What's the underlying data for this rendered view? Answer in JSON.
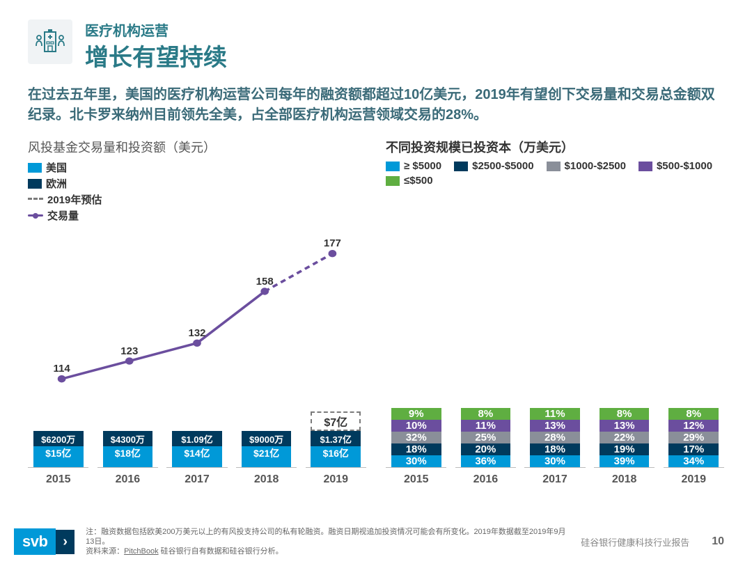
{
  "colors": {
    "brand_blue": "#0099d8",
    "title_teal": "#2a7a87",
    "dark_navy": "#003a5d",
    "purple": "#6b4e9e",
    "gray_seg": "#8a8f99",
    "green": "#5fae41",
    "text_gray": "#4a4a4a",
    "forecast_dash": "#7a7a7a"
  },
  "header": {
    "eyebrow": "医疗机构运营",
    "title": "增长有望持续",
    "eyebrow_color": "#2a7a87",
    "title_color": "#2a7a87",
    "eyebrow_fontsize": 20,
    "title_fontsize": 34
  },
  "subtext": "在过去五年里，美国的医疗机构运营公司每年的融资额都超过10亿美元，2019年有望创下交易量和交易总金额双纪录。北卡罗来纳州目前领先全美，占全部医疗机构运营领域交易的28%。",
  "subtext_color": "#3a6a78",
  "left_chart": {
    "title": "风投基金交易量和投资额（美元）",
    "legend": [
      {
        "label": "美国",
        "kind": "block",
        "color": "#0099d8"
      },
      {
        "label": "欧洲",
        "kind": "block",
        "color": "#003a5d"
      },
      {
        "label": "2019年预估",
        "kind": "dash",
        "color": "#7a7a7a"
      },
      {
        "label": "交易量",
        "kind": "line",
        "color": "#6b4e9e"
      }
    ],
    "years": [
      "2015",
      "2016",
      "2017",
      "2018",
      "2019"
    ],
    "max_value": 2800,
    "bars": [
      {
        "total_label": "$15亿",
        "eu_label": "$6200万",
        "us": 1500,
        "eu": 62
      },
      {
        "total_label": "$18亿",
        "eu_label": "$4300万",
        "us": 1800,
        "eu": 43
      },
      {
        "total_label": "$14亿",
        "eu_label": "$1.09亿",
        "us": 1400,
        "eu": 109
      },
      {
        "total_label": "$21亿",
        "eu_label": "$9000万",
        "us": 2100,
        "eu": 90
      },
      {
        "total_label": "$16亿",
        "eu_label": "$1.37亿",
        "us": 1600,
        "eu": 137,
        "forecast": 700,
        "forecast_label": "$7亿"
      }
    ],
    "line_values": [
      114,
      123,
      132,
      158,
      177
    ],
    "line_min": 100,
    "line_max": 185,
    "line_color": "#6b4e9e",
    "line_last_dashed": true
  },
  "right_chart": {
    "title": "不同投资规模已投资本（万美元）",
    "legend": [
      {
        "label": "≥ $5000",
        "color": "#0099d8"
      },
      {
        "label": "$2500-$5000",
        "color": "#003a5d"
      },
      {
        "label": "$1000-$2500",
        "color": "#8a8f99"
      },
      {
        "label": "$500-$1000",
        "color": "#6b4e9e"
      },
      {
        "label": "≤$500",
        "color": "#5fae41"
      }
    ],
    "years": [
      "2015",
      "2016",
      "2017",
      "2018",
      "2019"
    ],
    "stacks": [
      [
        30,
        18,
        32,
        10,
        9
      ],
      [
        36,
        20,
        25,
        11,
        8
      ],
      [
        30,
        18,
        28,
        13,
        11
      ],
      [
        39,
        19,
        22,
        13,
        8
      ],
      [
        34,
        17,
        29,
        12,
        8
      ]
    ],
    "seg_label_suffix": "%",
    "seg_label_fontsize": 15
  },
  "footer": {
    "note_line1": "注：融资数据包括欧美200万美元以上的有风投支持公司的私有轮融资。融资日期视追加投资情况可能会有所变化。2019年数据截至2019年9月13日。",
    "note_line2": "资料来源：PitchBook 硅谷银行自有数据和硅谷银行分析。",
    "pitchbook_underline": "PitchBook",
    "report_name": "硅谷银行健康科技行业报告",
    "page": "10",
    "logo_text": "svb",
    "logo_chevron": "›"
  }
}
